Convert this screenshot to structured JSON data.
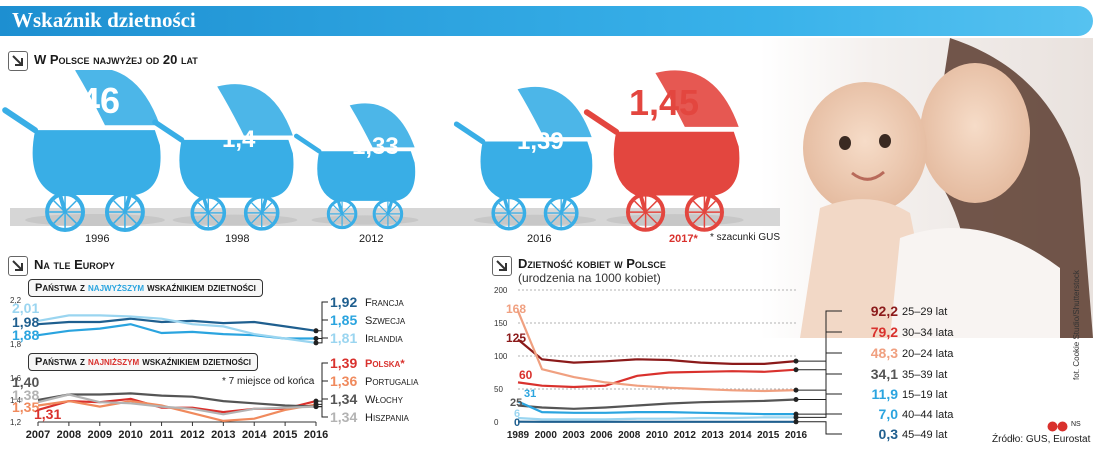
{
  "header": {
    "title": "Wskaźnik dzietności"
  },
  "poland_section": {
    "title": "W Polsce najwyżej od 20 lat",
    "prams": [
      {
        "year": "1996",
        "value": "1,46",
        "color": "#39aee6"
      },
      {
        "year": "1998",
        "value": "1,4",
        "color": "#39aee6"
      },
      {
        "year": "2012",
        "value": "1,33",
        "color": "#39aee6"
      },
      {
        "year": "2016",
        "value": "1,39",
        "color": "#39aee6"
      },
      {
        "year": "2017*",
        "value": "1,45",
        "color": "#e3463f"
      }
    ],
    "note": "* szacunki GUS"
  },
  "europe_section": {
    "title": "Na tle Europy",
    "box_high": {
      "prefix": "Państwa z",
      "highlight": "najwyższym",
      "suffix": "wskaźnikiem dzietności"
    },
    "box_low": {
      "prefix": "Państwa z",
      "highlight": "najniższym",
      "suffix": "wskaźnikiem dzietności"
    },
    "note": "* 7 miejsce od końca",
    "high_labels": [
      {
        "value": "1,92",
        "name": "Francja"
      },
      {
        "value": "1,85",
        "name": "Szwecja"
      },
      {
        "value": "1,81",
        "name": "Irlandia"
      }
    ],
    "low_labels": [
      {
        "value": "1,39",
        "name": "Polska*"
      },
      {
        "value": "1,36",
        "name": "Portugalia"
      },
      {
        "value": "1,34",
        "name": "Włochy"
      },
      {
        "value": "1,34",
        "name": "Hiszpania"
      }
    ],
    "start_labels_high": [
      "2,01",
      "1,98",
      "1,88"
    ],
    "start_labels_low": [
      "1,40",
      "1,38",
      "1,35",
      "1,31"
    ]
  },
  "women_section": {
    "title": "Dzietność kobiet w Polsce",
    "subtitle": "(urodzenia na 1000 kobiet)",
    "age_labels": [
      {
        "value": "92,2",
        "label": "25–29 lat"
      },
      {
        "value": "79,2",
        "label": "30–34 lata"
      },
      {
        "value": "48,3",
        "label": "20–24 lata"
      },
      {
        "value": "34,1",
        "label": "35–39 lat"
      },
      {
        "value": "11,9",
        "label": "15–19 lat"
      },
      {
        "value": "7,0",
        "label": "40–44 lata"
      },
      {
        "value": "0,3",
        "label": "45–49 lat"
      }
    ],
    "start_labels": [
      "168",
      "125",
      "60",
      "31",
      "25",
      "6",
      "0"
    ]
  },
  "footer": {
    "source": "Źródło: GUS, Eurostat",
    "photo_credit": "fot. Cookie Studio/Shutterstock",
    "logo": "NS"
  },
  "chart_data": [
    {
      "type": "bar",
      "title": "W Polsce najwyżej od 20 lat",
      "categories": [
        "1996",
        "1998",
        "2012",
        "2016",
        "2017*"
      ],
      "values": [
        1.46,
        1.4,
        1.33,
        1.39,
        1.45
      ]
    },
    {
      "type": "line",
      "title": "Państwa z najwyższym wskaźnikiem dzietności",
      "x": [
        2007,
        2008,
        2009,
        2010,
        2011,
        2012,
        2013,
        2014,
        2015,
        2016
      ],
      "ylim": [
        1.8,
        2.2
      ],
      "yticks": [
        "2,2",
        "1,8"
      ],
      "series": [
        {
          "name": "Francja",
          "color": "#1f5f8f",
          "values": [
            1.98,
            2.0,
            2.0,
            2.03,
            2.0,
            2.01,
            1.99,
            2.0,
            1.96,
            1.92
          ]
        },
        {
          "name": "Szwecja",
          "color": "#2aa4df",
          "values": [
            1.88,
            1.92,
            1.94,
            1.98,
            1.9,
            1.91,
            1.89,
            1.88,
            1.85,
            1.85
          ]
        },
        {
          "name": "Irlandia",
          "color": "#9ad5f0",
          "values": [
            2.01,
            2.06,
            2.06,
            2.05,
            2.03,
            1.98,
            1.96,
            1.89,
            1.85,
            1.81
          ]
        }
      ]
    },
    {
      "type": "line",
      "title": "Państwa z najniższym wskaźnikiem dzietności",
      "x": [
        2007,
        2008,
        2009,
        2010,
        2011,
        2012,
        2013,
        2014,
        2015,
        2016
      ],
      "ylim": [
        1.2,
        1.6
      ],
      "yticks": [
        "1,6",
        "1,4",
        "1,2"
      ],
      "series": [
        {
          "name": "Polska*",
          "color": "#d9312d",
          "values": [
            1.31,
            1.39,
            1.38,
            1.41,
            1.33,
            1.33,
            1.29,
            1.32,
            1.32,
            1.39
          ]
        },
        {
          "name": "Portugalia",
          "color": "#f08a5d",
          "values": [
            1.35,
            1.39,
            1.34,
            1.39,
            1.35,
            1.28,
            1.21,
            1.23,
            1.31,
            1.36
          ]
        },
        {
          "name": "Włochy",
          "color": "#555555",
          "values": [
            1.4,
            1.45,
            1.45,
            1.46,
            1.44,
            1.43,
            1.39,
            1.37,
            1.35,
            1.34
          ]
        },
        {
          "name": "Hiszpania",
          "color": "#b3b3b3",
          "values": [
            1.38,
            1.45,
            1.38,
            1.37,
            1.34,
            1.32,
            1.27,
            1.32,
            1.33,
            1.34
          ]
        }
      ]
    },
    {
      "type": "line",
      "title": "Dzietność kobiet w Polsce",
      "x": [
        1989,
        2000,
        2002,
        2004,
        2006,
        2008,
        2010,
        2012,
        2014,
        2016
      ],
      "x_tick_labels": [
        "1989",
        "2000",
        "2003",
        "2006",
        "2008",
        "2010",
        "2012",
        "2013",
        "2014",
        "2015",
        "2016"
      ],
      "ylim": [
        0,
        200
      ],
      "yticks": [
        200,
        150,
        100,
        50,
        0
      ],
      "series": [
        {
          "name": "25–29 lat",
          "color": "#8b1a1a",
          "values": [
            125,
            95,
            90,
            92,
            95,
            94,
            90,
            88,
            88,
            92.2
          ]
        },
        {
          "name": "30–34 lata",
          "color": "#d9312d",
          "values": [
            60,
            55,
            53,
            55,
            70,
            75,
            76,
            77,
            76,
            79.2
          ]
        },
        {
          "name": "20–24 lata",
          "color": "#f0a080",
          "values": [
            168,
            80,
            68,
            60,
            55,
            52,
            50,
            48,
            47,
            48.3
          ]
        },
        {
          "name": "35–39 lat",
          "color": "#555555",
          "values": [
            25,
            22,
            20,
            22,
            25,
            28,
            30,
            31,
            32,
            34.1
          ]
        },
        {
          "name": "15–19 lat",
          "color": "#2aa4df",
          "values": [
            31,
            15,
            14,
            14,
            15,
            15,
            14,
            13,
            12,
            11.9
          ]
        },
        {
          "name": "40–44 lata",
          "color": "#9ad5f0",
          "values": [
            6,
            4,
            4,
            4,
            5,
            5,
            6,
            6,
            7,
            7.0
          ]
        },
        {
          "name": "45–49 lat",
          "color": "#1f5f8f",
          "values": [
            0.5,
            0.3,
            0.3,
            0.3,
            0.3,
            0.3,
            0.3,
            0.3,
            0.3,
            0.3
          ]
        }
      ]
    }
  ]
}
